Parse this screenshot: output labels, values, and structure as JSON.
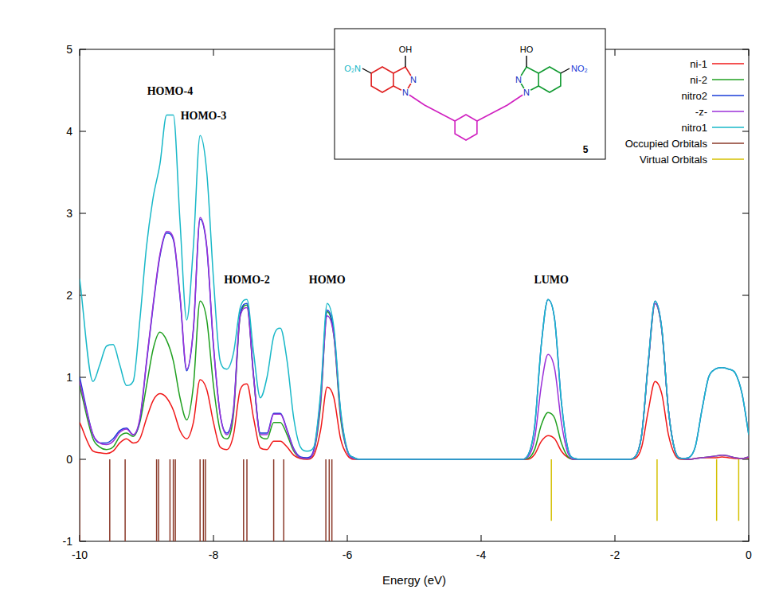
{
  "chart_data": {
    "type": "line",
    "x_label": "Energy (eV)",
    "x": [
      -10,
      -9.8,
      -9.7,
      -9.6,
      -9.5,
      -9.4,
      -9.3,
      -9.2,
      -9.1,
      -9.0,
      -8.9,
      -8.8,
      -8.7,
      -8.6,
      -8.5,
      -8.4,
      -8.3,
      -8.2,
      -8.1,
      -8.0,
      -7.9,
      -7.8,
      -7.7,
      -7.6,
      -7.5,
      -7.4,
      -7.3,
      -7.2,
      -7.1,
      -7.0,
      -6.9,
      -6.8,
      -6.7,
      -6.6,
      -6.5,
      -6.4,
      -6.3,
      -6.2,
      -6.1,
      -6.0,
      -5.9,
      -5.8,
      -3.4,
      -3.3,
      -3.2,
      -3.1,
      -3.0,
      -2.9,
      -2.8,
      -2.7,
      -2.6,
      -2.5,
      -1.8,
      -1.7,
      -1.6,
      -1.5,
      -1.4,
      -1.3,
      -1.2,
      -1.1,
      -1.0,
      -0.9,
      -0.8,
      -0.7,
      -0.6,
      -0.5,
      -0.4,
      -0.3,
      -0.2,
      -0.1,
      0
    ],
    "series": [
      {
        "name": "ni-1",
        "color": "#f01818",
        "type": "line",
        "values": [
          0.45,
          0.1,
          0.08,
          0.07,
          0.1,
          0.2,
          0.25,
          0.2,
          0.25,
          0.5,
          0.72,
          0.8,
          0.75,
          0.6,
          0.35,
          0.25,
          0.45,
          0.97,
          0.85,
          0.45,
          0.15,
          0.12,
          0.3,
          0.85,
          0.92,
          0.5,
          0.14,
          0.12,
          0.22,
          0.22,
          0.15,
          0.05,
          0.01,
          0,
          0.05,
          0.35,
          0.88,
          0.75,
          0.25,
          0.05,
          0,
          0,
          0,
          0,
          0.06,
          0.22,
          0.29,
          0.25,
          0.1,
          0.02,
          0,
          0,
          0,
          0.01,
          0.15,
          0.6,
          0.95,
          0.8,
          0.3,
          0.05,
          0,
          0,
          0.01,
          0.02,
          0.02,
          0.02,
          0.03,
          0.02,
          0.01,
          0.01,
          0.02
        ]
      },
      {
        "name": "ni-2",
        "color": "#20a020",
        "type": "line",
        "values": [
          0.9,
          0.25,
          0.15,
          0.12,
          0.15,
          0.28,
          0.32,
          0.28,
          0.45,
          0.9,
          1.35,
          1.55,
          1.45,
          1.2,
          0.75,
          0.48,
          0.9,
          1.93,
          1.7,
          0.9,
          0.35,
          0.25,
          0.55,
          1.75,
          1.88,
          1.0,
          0.28,
          0.25,
          0.45,
          0.45,
          0.3,
          0.1,
          0.02,
          0.01,
          0.1,
          0.65,
          1.8,
          1.5,
          0.5,
          0.1,
          0.01,
          0,
          0,
          0.01,
          0.12,
          0.42,
          0.57,
          0.5,
          0.2,
          0.03,
          0,
          0,
          0,
          0.03,
          0.3,
          1.18,
          1.9,
          1.58,
          0.6,
          0.1,
          0.01,
          0,
          0.01,
          0.02,
          0.03,
          0.04,
          0.05,
          0.04,
          0.02,
          0.01,
          0.03
        ]
      },
      {
        "name": "nitro2",
        "color": "#1a3cd8",
        "type": "line",
        "values": [
          1.0,
          0.3,
          0.2,
          0.2,
          0.25,
          0.35,
          0.38,
          0.3,
          0.48,
          1.18,
          1.88,
          2.48,
          2.76,
          2.68,
          1.98,
          1.08,
          1.58,
          2.93,
          2.58,
          1.38,
          0.55,
          0.32,
          0.62,
          1.78,
          1.9,
          1.02,
          0.32,
          0.32,
          0.56,
          0.56,
          0.36,
          0.13,
          0.03,
          0.02,
          0.12,
          0.75,
          1.82,
          1.55,
          0.58,
          0.11,
          0.02,
          0,
          0,
          0.05,
          0.4,
          1.4,
          1.95,
          1.7,
          0.7,
          0.12,
          0.01,
          0,
          0,
          0.03,
          0.3,
          1.2,
          1.93,
          1.6,
          0.6,
          0.1,
          0.01,
          0.02,
          0.15,
          0.6,
          1.0,
          1.1,
          1.12,
          1.1,
          1.05,
          0.8,
          0.3
        ]
      },
      {
        "name": "-z-",
        "color": "#9b30d8",
        "type": "line",
        "values": [
          0.95,
          0.3,
          0.2,
          0.18,
          0.22,
          0.33,
          0.37,
          0.3,
          0.5,
          1.2,
          1.9,
          2.5,
          2.78,
          2.7,
          2.0,
          1.1,
          1.6,
          2.95,
          2.6,
          1.4,
          0.55,
          0.3,
          0.6,
          1.75,
          1.85,
          1.0,
          0.3,
          0.3,
          0.55,
          0.55,
          0.35,
          0.12,
          0.02,
          0.01,
          0.1,
          0.7,
          1.75,
          1.5,
          0.55,
          0.1,
          0.01,
          0,
          0,
          0.03,
          0.25,
          0.9,
          1.28,
          1.1,
          0.45,
          0.07,
          0,
          0,
          0,
          0.03,
          0.3,
          1.18,
          1.9,
          1.58,
          0.6,
          0.1,
          0.01,
          0,
          0.01,
          0.02,
          0.03,
          0.04,
          0.05,
          0.04,
          0.02,
          0.01,
          0.03
        ]
      },
      {
        "name": "nitro1",
        "color": "#19b8c8",
        "type": "line",
        "values": [
          2.2,
          0.95,
          1.15,
          1.38,
          1.4,
          1.15,
          0.9,
          0.95,
          1.7,
          2.6,
          3.2,
          3.6,
          4.2,
          4.2,
          2.9,
          1.7,
          2.6,
          3.95,
          3.5,
          2.2,
          1.2,
          1.1,
          1.3,
          1.85,
          1.95,
          1.3,
          0.75,
          1.0,
          1.5,
          1.6,
          1.2,
          0.5,
          0.15,
          0.1,
          0.15,
          0.8,
          1.9,
          1.6,
          0.6,
          0.12,
          0.02,
          0,
          0,
          0.05,
          0.4,
          1.4,
          1.95,
          1.7,
          0.7,
          0.12,
          0.01,
          0,
          0,
          0.03,
          0.3,
          1.2,
          1.93,
          1.6,
          0.6,
          0.1,
          0.01,
          0.02,
          0.15,
          0.6,
          1.0,
          1.1,
          1.12,
          1.1,
          1.05,
          0.8,
          0.3
        ]
      },
      {
        "name": "Occupied Orbitals",
        "color": "#8b3a2a",
        "type": "stick",
        "x": [
          -10,
          -9.55,
          -9.32,
          -8.85,
          -8.82,
          -8.65,
          -8.6,
          -8.57,
          -8.2,
          -8.15,
          -8.12,
          -7.55,
          -7.5,
          -7.1,
          -6.95,
          -6.32,
          -6.27,
          -6.23
        ],
        "values": [
          -1,
          -1,
          -1,
          -1,
          -1,
          -1,
          -1,
          -1,
          -1,
          -1,
          -1,
          -1,
          -1,
          -1,
          -1,
          -1,
          -1,
          -1
        ]
      },
      {
        "name": "Virtual Orbitals",
        "color": "#d4c000",
        "type": "stick",
        "x": [
          -2.95,
          -1.37,
          -0.48,
          -0.15
        ],
        "values": [
          -0.75,
          -0.75,
          -0.75,
          -0.75
        ]
      }
    ],
    "xlim": [
      -10,
      0
    ],
    "xticks": [
      -10,
      -8,
      -6,
      -4,
      -2,
      0
    ],
    "ylim": [
      -1,
      5
    ],
    "yticks": [
      -1,
      0,
      1,
      2,
      3,
      4,
      5
    ],
    "grid": false,
    "legend": "top-right",
    "annotations": [
      {
        "text": "HOMO-4",
        "x": -8.65,
        "y": 4.45
      },
      {
        "text": "HOMO-3",
        "x": -8.15,
        "y": 4.15
      },
      {
        "text": "HOMO-2",
        "x": -7.5,
        "y": 2.15
      },
      {
        "text": "HOMO",
        "x": -6.3,
        "y": 2.15
      },
      {
        "text": "LUMO",
        "x": -2.95,
        "y": 2.15
      }
    ]
  },
  "inset": {
    "compound": "5",
    "left_nitro": "O₂N",
    "left_hydroxyl": "OH",
    "right_hydroxyl": "HO",
    "right_nitro": "NO₂",
    "nitrogen": "N"
  }
}
